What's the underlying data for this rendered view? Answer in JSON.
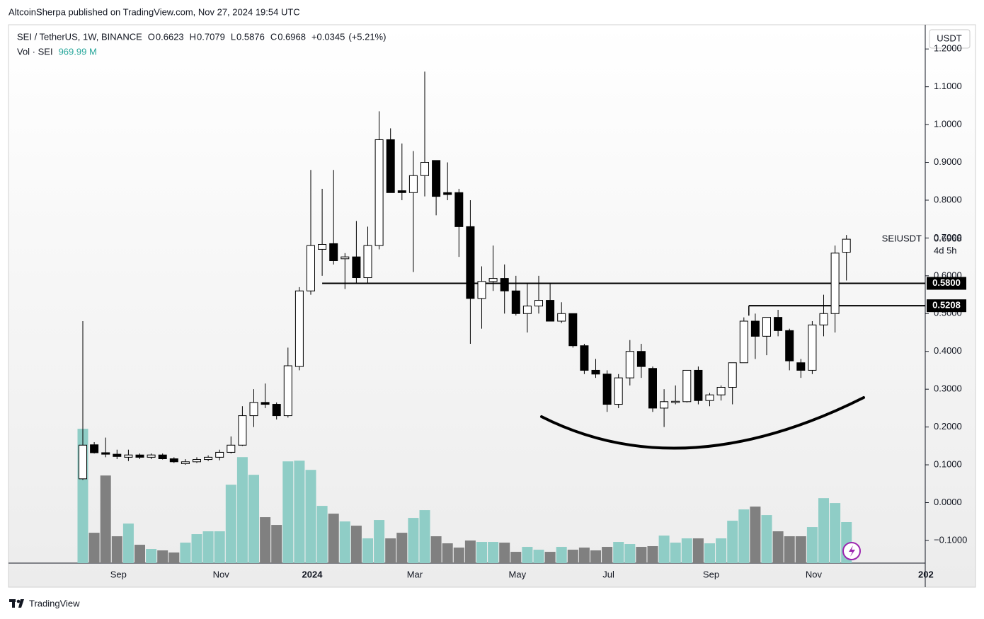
{
  "header": {
    "publisher": "AltcoinSherpa published on TradingView.com, Nov 27, 2024 19:54 UTC",
    "brand": "TradingView"
  },
  "chart_data": {
    "type": "candlestick",
    "symbol": "SEI / TetherUS, 1W, BINANCE",
    "ohlc_prefixes": [
      "O",
      "H",
      "L",
      "C"
    ],
    "change": {
      "value": 0.0345,
      "label": "+0.0345"
    },
    "change_pct": {
      "value": 5.21,
      "label": "(+5.21%)"
    },
    "volume_title": "Vol · SEI",
    "volume_label": "969.99 M",
    "currency": "USDT",
    "price_tag_name": "SEIUSDT",
    "countdown": "4d 5h",
    "categories": [
      null,
      null,
      null,
      "Sep",
      null,
      null,
      null,
      null,
      null,
      null,
      null,
      null,
      "Nov",
      null,
      null,
      null,
      null,
      null,
      null,
      null,
      "2024",
      null,
      null,
      null,
      null,
      null,
      null,
      null,
      null,
      "Mar",
      null,
      null,
      null,
      null,
      null,
      null,
      null,
      null,
      "May",
      null,
      null,
      null,
      null,
      null,
      null,
      null,
      "Jul",
      null,
      null,
      null,
      null,
      null,
      null,
      null,
      null,
      "Sep",
      null,
      null,
      null,
      null,
      null,
      null,
      null,
      null,
      "Nov",
      null,
      null,
      null
    ],
    "x_edge_label": "202",
    "open": [
      0.063,
      0.153,
      0.132,
      0.128,
      0.12,
      0.126,
      0.12,
      0.126,
      0.116,
      0.103,
      0.108,
      0.114,
      0.12,
      0.133,
      0.152,
      0.23,
      0.265,
      0.26,
      0.23,
      0.36,
      0.56,
      0.67,
      0.685,
      0.645,
      0.65,
      0.595,
      0.68,
      0.96,
      0.825,
      0.82,
      0.865,
      0.905,
      0.82,
      0.82,
      0.73,
      0.54,
      0.585,
      0.593,
      0.56,
      0.5,
      0.52,
      0.535,
      0.48,
      0.5,
      0.415,
      0.35,
      0.34,
      0.26,
      0.33,
      0.4,
      0.355,
      0.25,
      0.265,
      0.267,
      0.35,
      0.27,
      0.285,
      0.305,
      0.37,
      0.48,
      0.44,
      0.49,
      0.455,
      0.37,
      0.35,
      0.47,
      0.5,
      0.6623
    ],
    "high": [
      0.48,
      0.16,
      0.172,
      0.14,
      0.14,
      0.13,
      0.13,
      0.13,
      0.12,
      0.115,
      0.12,
      0.125,
      0.14,
      0.175,
      0.255,
      0.3,
      0.315,
      0.265,
      0.41,
      0.57,
      0.88,
      0.83,
      0.88,
      0.66,
      0.745,
      0.73,
      1.035,
      0.99,
      0.95,
      0.93,
      1.14,
      0.9,
      0.9,
      0.83,
      0.8,
      0.625,
      0.68,
      0.63,
      0.6,
      0.58,
      0.6,
      0.58,
      0.53,
      0.5,
      0.42,
      0.38,
      0.35,
      0.34,
      0.43,
      0.42,
      0.36,
      0.3,
      0.31,
      0.35,
      0.36,
      0.29,
      0.31,
      0.37,
      0.49,
      0.5,
      0.49,
      0.51,
      0.46,
      0.38,
      0.48,
      0.55,
      0.68,
      0.7079
    ],
    "low": [
      0.06,
      0.13,
      0.12,
      0.115,
      0.11,
      0.115,
      0.115,
      0.114,
      0.105,
      0.1,
      0.105,
      0.11,
      0.112,
      0.13,
      0.15,
      0.2,
      0.25,
      0.22,
      0.225,
      0.35,
      0.55,
      0.6,
      0.63,
      0.565,
      0.58,
      0.58,
      0.67,
      0.82,
      0.8,
      0.61,
      0.81,
      0.76,
      0.8,
      0.65,
      0.42,
      0.46,
      0.56,
      0.5,
      0.495,
      0.45,
      0.5,
      0.48,
      0.475,
      0.41,
      0.34,
      0.33,
      0.24,
      0.25,
      0.31,
      0.33,
      0.24,
      0.2,
      0.26,
      0.265,
      0.26,
      0.255,
      0.27,
      0.26,
      0.37,
      0.38,
      0.39,
      0.44,
      0.35,
      0.33,
      0.34,
      0.44,
      0.45,
      0.5876
    ],
    "close": [
      0.152,
      0.132,
      0.128,
      0.122,
      0.126,
      0.12,
      0.126,
      0.116,
      0.108,
      0.108,
      0.114,
      0.12,
      0.133,
      0.152,
      0.23,
      0.265,
      0.26,
      0.23,
      0.362,
      0.56,
      0.68,
      0.683,
      0.64,
      0.65,
      0.595,
      0.68,
      0.96,
      0.82,
      0.82,
      0.865,
      0.9,
      0.81,
      0.815,
      0.73,
      0.54,
      0.585,
      0.593,
      0.56,
      0.5,
      0.52,
      0.535,
      0.48,
      0.5,
      0.415,
      0.35,
      0.34,
      0.26,
      0.33,
      0.4,
      0.36,
      0.25,
      0.267,
      0.268,
      0.35,
      0.27,
      0.285,
      0.305,
      0.37,
      0.48,
      0.44,
      0.49,
      0.455,
      0.375,
      0.35,
      0.47,
      0.5,
      0.66,
      0.6968
    ],
    "volume": [
      3175,
      718,
      2071,
      635,
      935,
      434,
      334,
      301,
      251,
      484,
      685,
      752,
      752,
      1854,
      2505,
      2088,
      1086,
      902,
      2405,
      2422,
      2204,
      1353,
      1169,
      985,
      885,
      585,
      1019,
      585,
      718,
      1069,
      1253,
      635,
      468,
      367,
      534,
      501,
      501,
      484,
      267,
      384,
      317,
      267,
      384,
      317,
      367,
      301,
      384,
      501,
      451,
      384,
      401,
      651,
      484,
      585,
      585,
      468,
      585,
      1002,
      1269,
      1336,
      1136,
      752,
      635,
      635,
      852,
      1536,
      1420,
      969.99
    ],
    "up_color": "#ffffff",
    "down_color": "#000000",
    "wick_color": "#000000",
    "volume_up_color": "#8fcdc6",
    "volume_down_color": "#808080",
    "levels": [
      {
        "value": 0.58,
        "label": "0.5800",
        "from": 21
      },
      {
        "value": 0.5208,
        "label": "0.5208",
        "from": 58
      }
    ],
    "ylim": [
      -0.16,
      1.264
    ],
    "yticks": [
      {
        "value": -0.1,
        "label": "−0.1000"
      },
      {
        "value": 0,
        "label": "0.0000"
      },
      {
        "value": 0.1,
        "label": "0.1000"
      },
      {
        "value": 0.2,
        "label": "0.2000"
      },
      {
        "value": 0.3,
        "label": "0.3000"
      },
      {
        "value": 0.4,
        "label": "0.4000"
      },
      {
        "value": 0.5,
        "label": "0.5000"
      },
      {
        "value": 0.6,
        "label": "0.6000"
      },
      {
        "value": 0.7,
        "label": "0.7000"
      },
      {
        "value": 0.8,
        "label": "0.8000"
      },
      {
        "value": 0.9,
        "label": "0.9000"
      },
      {
        "value": 1,
        "label": "1.0000"
      },
      {
        "value": 1.1,
        "label": "1.1000"
      },
      {
        "value": 1.2,
        "label": "1.2000"
      }
    ]
  }
}
